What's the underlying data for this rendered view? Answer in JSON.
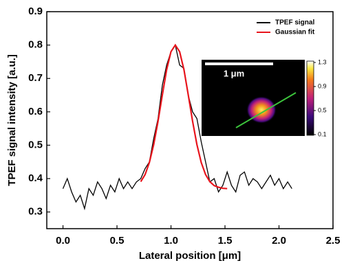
{
  "chart_data": {
    "type": "line",
    "xlabel": "Lateral position [μm]",
    "ylabel": "TPEF signal intensity [a.u.]",
    "xlim": [
      -0.15,
      2.5
    ],
    "ylim": [
      0.25,
      0.9
    ],
    "xticks": [
      {
        "value": 0,
        "label": "0.0"
      },
      0.5,
      {
        "value": 1,
        "label": "1.0"
      },
      1.5,
      {
        "value": 2,
        "label": "2.0"
      },
      2.5
    ],
    "yticks": [
      0.3,
      0.4,
      0.5,
      0.6,
      0.7,
      0.8,
      0.9
    ],
    "legend": "upper right",
    "series": [
      {
        "name": "TPEF signal",
        "color": "#000000",
        "x": [
          0,
          0.04,
          0.08,
          0.12,
          0.16,
          0.2,
          0.24,
          0.28,
          0.32,
          0.36,
          0.4,
          0.44,
          0.48,
          0.52,
          0.56,
          0.6,
          0.64,
          0.68,
          0.72,
          0.76,
          0.8,
          0.84,
          0.88,
          0.92,
          0.96,
          1.0,
          1.04,
          1.08,
          1.12,
          1.16,
          1.2,
          1.24,
          1.28,
          1.32,
          1.36,
          1.4,
          1.44,
          1.48,
          1.52,
          1.56,
          1.6,
          1.64,
          1.68,
          1.72,
          1.76,
          1.8,
          1.84,
          1.88,
          1.92,
          1.96,
          2.0,
          2.04,
          2.08,
          2.12
        ],
        "values": [
          0.37,
          0.4,
          0.36,
          0.33,
          0.35,
          0.31,
          0.37,
          0.35,
          0.39,
          0.37,
          0.34,
          0.38,
          0.36,
          0.4,
          0.37,
          0.39,
          0.37,
          0.39,
          0.4,
          0.43,
          0.45,
          0.52,
          0.58,
          0.68,
          0.74,
          0.78,
          0.8,
          0.74,
          0.73,
          0.65,
          0.6,
          0.58,
          0.51,
          0.45,
          0.39,
          0.4,
          0.36,
          0.38,
          0.42,
          0.38,
          0.36,
          0.41,
          0.42,
          0.38,
          0.4,
          0.39,
          0.37,
          0.39,
          0.41,
          0.38,
          0.4,
          0.37,
          0.39,
          0.37
        ]
      },
      {
        "name": "Gaussian fit",
        "color": "#e8141c",
        "x": [
          0.72,
          0.76,
          0.8,
          0.84,
          0.88,
          0.92,
          0.96,
          1.0,
          1.04,
          1.08,
          1.12,
          1.16,
          1.2,
          1.24,
          1.28,
          1.32,
          1.36,
          1.4,
          1.44,
          1.48,
          1.52
        ],
        "values": [
          0.391,
          0.412,
          0.448,
          0.502,
          0.572,
          0.651,
          0.726,
          0.78,
          0.8,
          0.78,
          0.726,
          0.651,
          0.572,
          0.502,
          0.448,
          0.412,
          0.391,
          0.379,
          0.374,
          0.371,
          0.37
        ]
      }
    ],
    "inset": {
      "scale_bar": "1 μm",
      "colorbar_lim": [
        0.1,
        1.3
      ],
      "colorbar_ticks": [
        1.3,
        0.9,
        0.5,
        0.1
      ]
    }
  }
}
